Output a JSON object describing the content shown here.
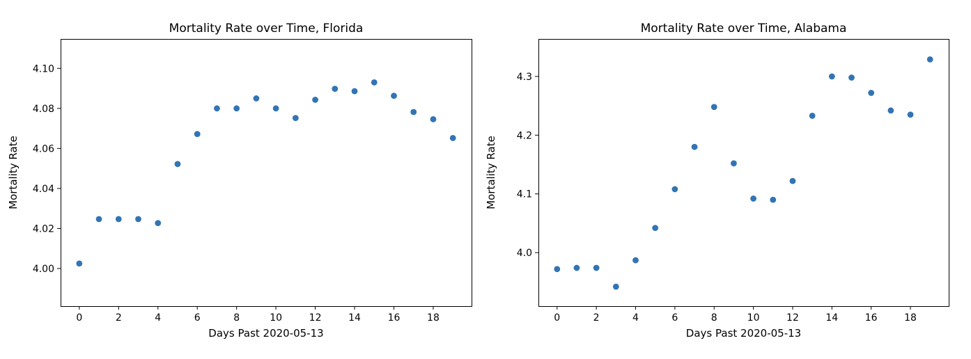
{
  "chart_data": [
    {
      "type": "scatter",
      "title": "Mortality Rate over Time, Florida",
      "xlabel": "Days Past 2020-05-13",
      "ylabel": "Mortality Rate",
      "xlim": [
        -0.95,
        19.95
      ],
      "ylim": [
        3.9812,
        4.1147
      ],
      "xticks": [
        0,
        2,
        4,
        6,
        8,
        10,
        12,
        14,
        16,
        18
      ],
      "xtick_labels": [
        "0",
        "2",
        "4",
        "6",
        "8",
        "10",
        "12",
        "14",
        "16",
        "18"
      ],
      "yticks": [
        4.0,
        4.02,
        4.04,
        4.06,
        4.08,
        4.1
      ],
      "ytick_labels": [
        "4.00",
        "4.02",
        "4.04",
        "4.06",
        "4.08",
        "4.10"
      ],
      "grid": false,
      "marker_color": "#3274b4",
      "x": [
        0,
        1,
        2,
        3,
        4,
        5,
        6,
        7,
        8,
        9,
        10,
        11,
        12,
        13,
        14,
        15,
        16,
        17,
        18,
        19
      ],
      "y": [
        4.0025,
        4.0247,
        4.0247,
        4.0247,
        4.0227,
        4.0522,
        4.0672,
        4.08,
        4.08,
        4.085,
        4.08,
        4.0752,
        4.0843,
        4.0898,
        4.0886,
        4.093,
        4.0863,
        4.0782,
        4.0746,
        4.0652
      ]
    },
    {
      "type": "scatter",
      "title": "Mortality Rate over Time, Alabama",
      "xlabel": "Days Past 2020-05-13",
      "ylabel": "Mortality Rate",
      "xlim": [
        -0.95,
        19.95
      ],
      "ylim": [
        3.9089,
        4.3638
      ],
      "xticks": [
        0,
        2,
        4,
        6,
        8,
        10,
        12,
        14,
        16,
        18
      ],
      "xtick_labels": [
        "0",
        "2",
        "4",
        "6",
        "8",
        "10",
        "12",
        "14",
        "16",
        "18"
      ],
      "yticks": [
        4.0,
        4.1,
        4.2,
        4.3
      ],
      "ytick_labels": [
        "4.0",
        "4.1",
        "4.2",
        "4.3"
      ],
      "grid": false,
      "marker_color": "#3274b4",
      "x": [
        0,
        1,
        2,
        3,
        4,
        5,
        6,
        7,
        8,
        9,
        10,
        11,
        12,
        13,
        14,
        15,
        16,
        17,
        18,
        19
      ],
      "y": [
        3.972,
        3.974,
        3.974,
        3.942,
        3.987,
        4.042,
        4.108,
        4.18,
        4.248,
        4.152,
        4.092,
        4.09,
        4.122,
        4.233,
        4.3,
        4.298,
        4.272,
        4.242,
        4.235,
        4.329
      ]
    }
  ]
}
